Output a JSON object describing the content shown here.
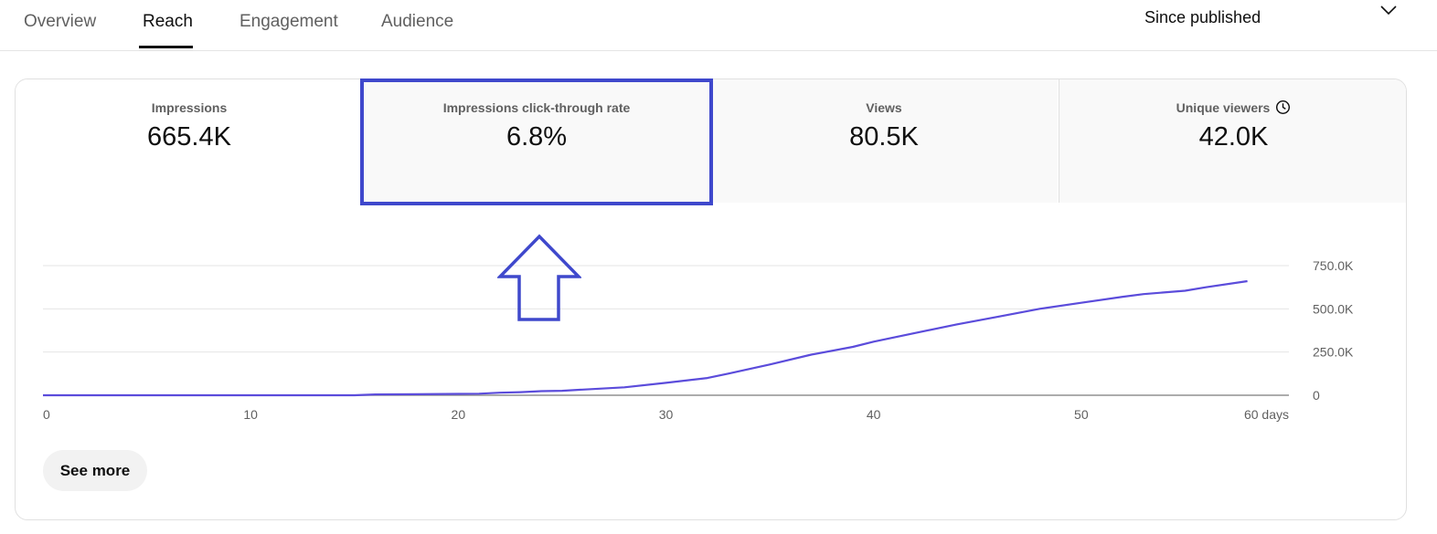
{
  "tabs": [
    {
      "label": "Overview"
    },
    {
      "label": "Reach"
    },
    {
      "label": "Engagement"
    },
    {
      "label": "Audience"
    }
  ],
  "date_range": {
    "label": "Since published",
    "icon": "chevron-down-icon"
  },
  "metrics": [
    {
      "label": "Impressions",
      "value": "665.4K"
    },
    {
      "label": "Impressions click-through rate",
      "value": "6.8%"
    },
    {
      "label": "Views",
      "value": "80.5K"
    },
    {
      "label": "Unique viewers",
      "value": "42.0K",
      "icon": "clock-icon"
    }
  ],
  "chart_data": {
    "type": "line",
    "title": "",
    "xlabel": "",
    "ylabel": "",
    "x_ticks": [
      "0",
      "10",
      "20",
      "30",
      "40",
      "50",
      "60 days"
    ],
    "y_ticks": [
      "0",
      "250.0K",
      "500.0K",
      "750.0K"
    ],
    "xlim": [
      0,
      60
    ],
    "ylim": [
      0,
      750000
    ],
    "grid": true,
    "line_color": "#5b4cdb",
    "x": [
      0,
      5,
      10,
      15,
      16,
      18,
      20,
      21,
      22,
      23,
      24,
      25,
      26,
      28,
      30,
      32,
      33,
      35,
      37,
      39,
      40,
      42,
      44,
      46,
      48,
      50,
      52,
      53,
      55,
      56,
      58
    ],
    "values": [
      0,
      0,
      0,
      0,
      5000,
      6000,
      8000,
      9000,
      15000,
      18000,
      24000,
      26000,
      33000,
      46000,
      72000,
      100000,
      125000,
      178000,
      235000,
      280000,
      310000,
      360000,
      410000,
      455000,
      500000,
      535000,
      570000,
      585000,
      605000,
      625000,
      660000
    ]
  },
  "see_more": {
    "label": "See more"
  },
  "annotation": {
    "highlight_color": "#3f48cc"
  }
}
